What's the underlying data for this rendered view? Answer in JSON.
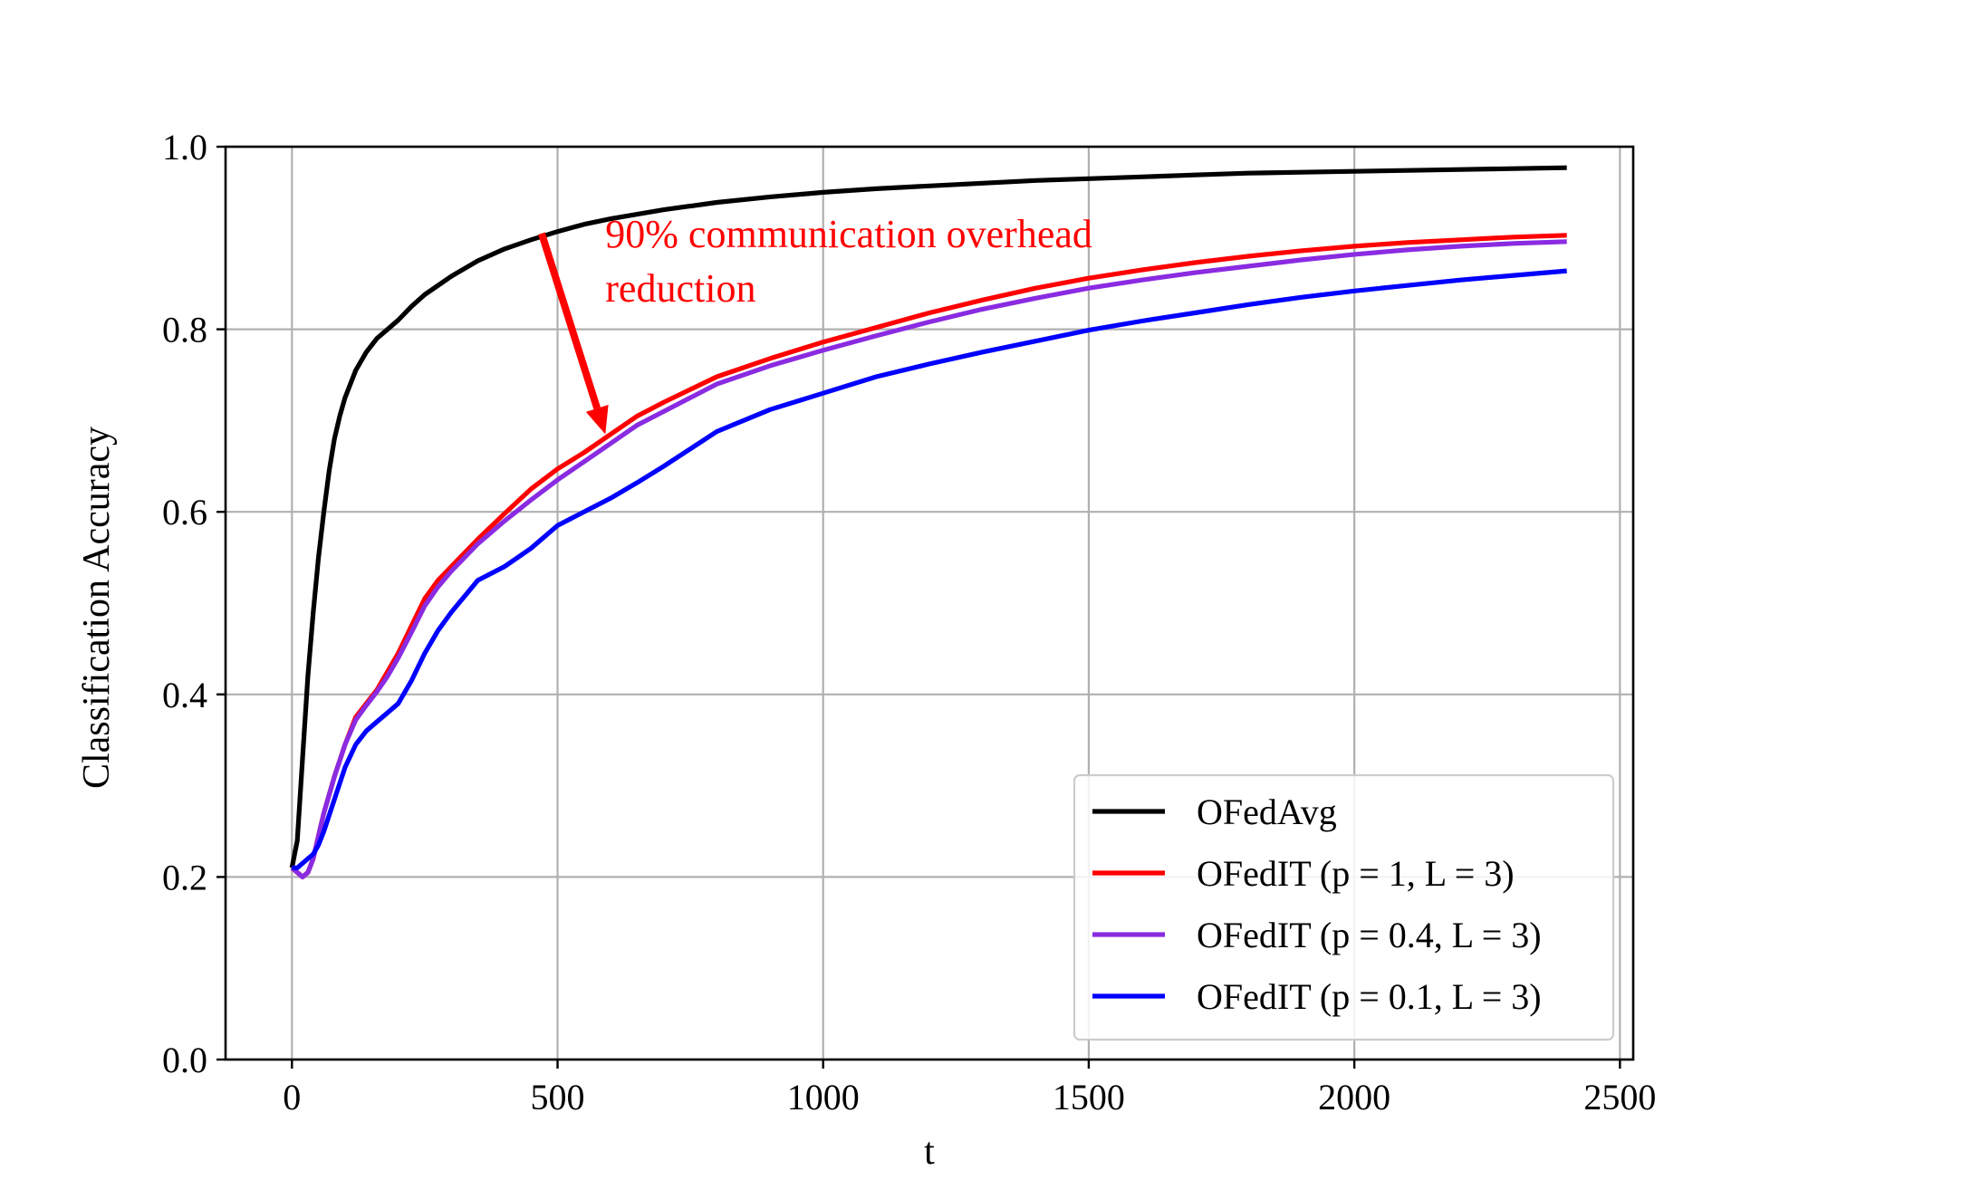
{
  "chart_data": {
    "type": "line",
    "xlabel": "t",
    "ylabel": "Classification Accuracy",
    "xlim": [
      -125,
      2525
    ],
    "ylim": [
      0.0,
      1.0
    ],
    "x_ticks": [
      0,
      500,
      1000,
      1500,
      2000,
      2500
    ],
    "x_tick_labels": [
      "0",
      "500",
      "1000",
      "1500",
      "2000",
      "2500"
    ],
    "y_ticks": [
      0.0,
      0.2,
      0.4,
      0.6,
      0.8,
      1.0
    ],
    "y_tick_labels": [
      "0.0",
      "0.2",
      "0.4",
      "0.6",
      "0.8",
      "1.0"
    ],
    "grid": true,
    "legend_position": "lower-right",
    "series": [
      {
        "name": "OFedAvg",
        "color": "#000000",
        "x": [
          0,
          10,
          20,
          30,
          40,
          50,
          60,
          70,
          80,
          90,
          100,
          120,
          140,
          160,
          180,
          200,
          225,
          250,
          275,
          300,
          350,
          400,
          450,
          500,
          550,
          600,
          650,
          700,
          800,
          900,
          1000,
          1100,
          1200,
          1300,
          1400,
          1500,
          1600,
          1700,
          1800,
          1900,
          2000,
          2100,
          2200,
          2300,
          2400
        ],
        "y": [
          0.21,
          0.24,
          0.33,
          0.42,
          0.49,
          0.55,
          0.6,
          0.645,
          0.68,
          0.705,
          0.725,
          0.755,
          0.775,
          0.79,
          0.8,
          0.81,
          0.825,
          0.838,
          0.848,
          0.858,
          0.875,
          0.888,
          0.898,
          0.907,
          0.915,
          0.921,
          0.926,
          0.931,
          0.939,
          0.945,
          0.95,
          0.954,
          0.957,
          0.96,
          0.963,
          0.965,
          0.967,
          0.969,
          0.971,
          0.972,
          0.973,
          0.974,
          0.975,
          0.976,
          0.977
        ]
      },
      {
        "name": "OFedIT (p = 1, L = 3)",
        "color": "#ff0000",
        "x": [
          0,
          10,
          20,
          30,
          40,
          50,
          60,
          80,
          100,
          120,
          140,
          160,
          180,
          200,
          225,
          250,
          275,
          300,
          350,
          400,
          450,
          500,
          550,
          600,
          650,
          700,
          800,
          900,
          1000,
          1100,
          1200,
          1300,
          1400,
          1500,
          1600,
          1700,
          1800,
          1900,
          2000,
          2100,
          2200,
          2300,
          2400
        ],
        "y": [
          0.21,
          0.205,
          0.2,
          0.205,
          0.22,
          0.245,
          0.27,
          0.31,
          0.345,
          0.375,
          0.39,
          0.405,
          0.425,
          0.445,
          0.475,
          0.505,
          0.525,
          0.54,
          0.57,
          0.598,
          0.625,
          0.647,
          0.665,
          0.685,
          0.705,
          0.72,
          0.748,
          0.768,
          0.786,
          0.802,
          0.818,
          0.832,
          0.845,
          0.856,
          0.865,
          0.873,
          0.88,
          0.886,
          0.891,
          0.895,
          0.898,
          0.901,
          0.903
        ]
      },
      {
        "name": "OFedIT (p = 0.4, L = 3)",
        "color": "#8a2be2",
        "x": [
          0,
          10,
          20,
          30,
          40,
          50,
          60,
          80,
          100,
          120,
          140,
          160,
          180,
          200,
          225,
          250,
          275,
          300,
          350,
          400,
          450,
          500,
          550,
          600,
          650,
          700,
          800,
          900,
          1000,
          1100,
          1200,
          1300,
          1400,
          1500,
          1600,
          1700,
          1800,
          1900,
          2000,
          2100,
          2200,
          2300,
          2400
        ],
        "y": [
          0.21,
          0.205,
          0.2,
          0.205,
          0.22,
          0.245,
          0.27,
          0.31,
          0.345,
          0.372,
          0.388,
          0.403,
          0.42,
          0.44,
          0.468,
          0.497,
          0.518,
          0.535,
          0.565,
          0.59,
          0.613,
          0.635,
          0.655,
          0.675,
          0.695,
          0.71,
          0.74,
          0.76,
          0.777,
          0.793,
          0.808,
          0.822,
          0.834,
          0.845,
          0.854,
          0.862,
          0.869,
          0.876,
          0.882,
          0.887,
          0.891,
          0.894,
          0.896
        ]
      },
      {
        "name": "OFedIT (p = 0.1, L = 3)",
        "color": "#0000ff",
        "x": [
          0,
          10,
          20,
          30,
          40,
          50,
          60,
          80,
          100,
          120,
          140,
          160,
          180,
          200,
          225,
          250,
          275,
          300,
          350,
          400,
          450,
          500,
          550,
          600,
          650,
          700,
          800,
          900,
          1000,
          1100,
          1200,
          1300,
          1400,
          1500,
          1600,
          1700,
          1800,
          1900,
          2000,
          2100,
          2200,
          2300,
          2400
        ],
        "y": [
          0.21,
          0.21,
          0.215,
          0.22,
          0.225,
          0.235,
          0.25,
          0.285,
          0.32,
          0.345,
          0.36,
          0.37,
          0.38,
          0.39,
          0.415,
          0.445,
          0.47,
          0.49,
          0.525,
          0.54,
          0.56,
          0.585,
          0.6,
          0.615,
          0.632,
          0.65,
          0.688,
          0.712,
          0.73,
          0.748,
          0.762,
          0.775,
          0.787,
          0.799,
          0.809,
          0.818,
          0.827,
          0.835,
          0.842,
          0.848,
          0.854,
          0.859,
          0.864
        ]
      }
    ],
    "annotations": [
      {
        "text_lines": [
          "90% communication overhead",
          "reduction"
        ],
        "color": "#ff0000",
        "arrow_from": [
          470,
          0.905
        ],
        "arrow_to": [
          590,
          0.685
        ],
        "text_anchor": [
          590,
          0.89
        ]
      }
    ]
  }
}
